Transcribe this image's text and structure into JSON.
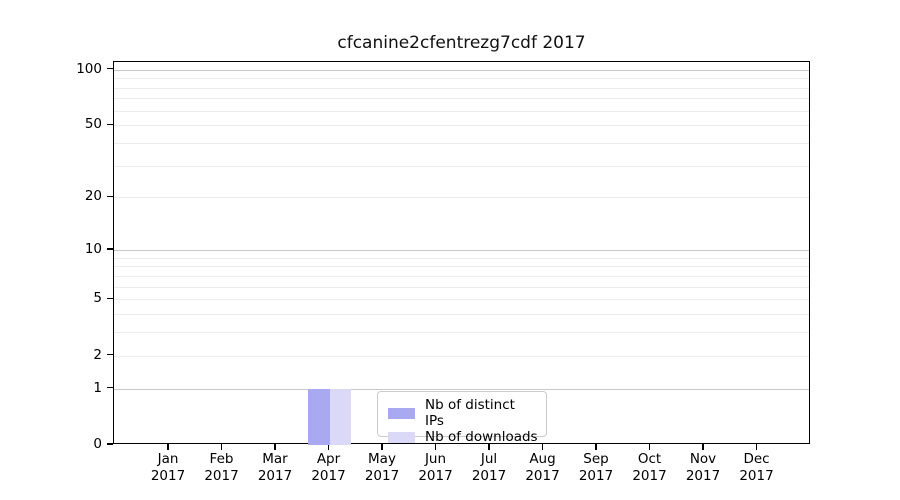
{
  "title": "cfcanine2cfentrezg7cdf 2017",
  "chart_data": {
    "type": "bar",
    "title": "cfcanine2cfentrezg7cdf 2017",
    "categories": [
      "Jan 2017",
      "Feb 2017",
      "Mar 2017",
      "Apr 2017",
      "May 2017",
      "Jun 2017",
      "Jul 2017",
      "Aug 2017",
      "Sep 2017",
      "Oct 2017",
      "Nov 2017",
      "Dec 2017"
    ],
    "x_tick_months": [
      "Jan",
      "Feb",
      "Mar",
      "Apr",
      "May",
      "Jun",
      "Jul",
      "Aug",
      "Sep",
      "Oct",
      "Nov",
      "Dec"
    ],
    "x_tick_year": "2017",
    "series": [
      {
        "name": "Nb of distinct IPs",
        "color": "#a9a9f2",
        "values": [
          0,
          0,
          0,
          1,
          0,
          0,
          0,
          0,
          0,
          0,
          0,
          0
        ]
      },
      {
        "name": "Nb of downloads",
        "color": "#dadaf8",
        "values": [
          0,
          0,
          0,
          1,
          0,
          0,
          0,
          0,
          0,
          0,
          0,
          0
        ]
      }
    ],
    "yscale": "log1p",
    "ylim": [
      0,
      110
    ],
    "ytick_values": [
      0,
      1,
      2,
      5,
      10,
      20,
      50,
      100
    ],
    "ytick_labels": [
      "0",
      "1",
      "2",
      "5",
      "10",
      "20",
      "50",
      "100"
    ],
    "major_grid_values": [
      1,
      10,
      100
    ],
    "minor_grid_values": [
      2,
      3,
      4,
      5,
      6,
      7,
      8,
      9,
      20,
      30,
      40,
      50,
      60,
      70,
      80,
      90
    ],
    "grid": true,
    "legend_position": "lower center",
    "colors": {
      "major_grid": "#c9c9c9",
      "minor_grid": "#ececec",
      "spine": "#000000",
      "background": "#ffffff"
    }
  }
}
